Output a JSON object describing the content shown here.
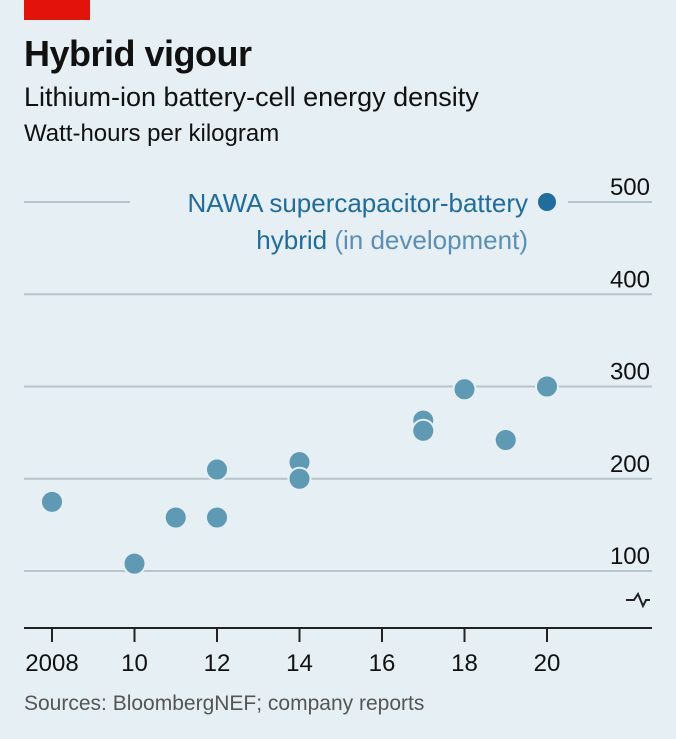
{
  "header": {
    "title": "Hybrid vigour",
    "subtitle": "Lithium-ion battery-cell energy density",
    "unit": "Watt-hours per kilogram"
  },
  "source": "Sources: BloombergNEF; company reports",
  "colors": {
    "background": "#e6eff3",
    "point": "#5e9ab3",
    "highlight": "#1f6c9e",
    "grid": "#b7c4cb",
    "brand_tag": "#e3120b"
  },
  "chart_data": {
    "type": "scatter",
    "ylim": [
      60,
      500
    ],
    "xlim": [
      2008,
      2020
    ],
    "y_ticks": [
      100,
      200,
      300,
      400,
      500
    ],
    "x_ticks": [
      2008,
      2010,
      2012,
      2014,
      2016,
      2018,
      2020
    ],
    "x_tick_labels": [
      "2008",
      "10",
      "12",
      "14",
      "16",
      "18",
      "20"
    ],
    "y_axis_break": true,
    "grid": true,
    "series": [
      {
        "points": [
          {
            "x": 2008,
            "y": 175
          },
          {
            "x": 2010,
            "y": 108
          },
          {
            "x": 2011,
            "y": 158
          },
          {
            "x": 2012,
            "y": 210
          },
          {
            "x": 2012,
            "y": 158
          },
          {
            "x": 2014,
            "y": 218
          },
          {
            "x": 2014,
            "y": 200
          },
          {
            "x": 2017,
            "y": 263
          },
          {
            "x": 2017,
            "y": 252
          },
          {
            "x": 2018,
            "y": 297
          },
          {
            "x": 2019,
            "y": 242
          },
          {
            "x": 2020,
            "y": 300
          }
        ]
      },
      {
        "highlight": true,
        "points": [
          {
            "x": 2020,
            "y": 500
          }
        ]
      }
    ],
    "annotation": {
      "line1": "NAWA supercapacitor-battery",
      "line2_bold": "hybrid",
      "line2_light": " (in development)"
    }
  }
}
